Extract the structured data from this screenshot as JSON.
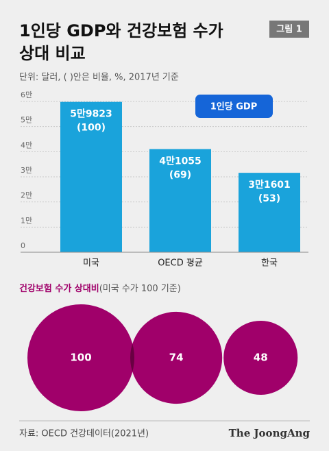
{
  "header": {
    "title_lines": [
      "1인당 GDP와 건강보험 수가",
      "상대 비교"
    ],
    "badge": "그림 1",
    "note": "단위: 달러, ( )안은 비율, %, 2017년 기준"
  },
  "chart_data": [
    {
      "type": "bar",
      "categories": [
        "미국",
        "OECD 평균",
        "한국"
      ],
      "series": [
        {
          "name": "1인당 GDP",
          "color": "#1aa3db",
          "legend_color": "#1565d8",
          "values": [
            59823,
            41055,
            31601
          ],
          "value_labels": [
            "5만9823",
            "4만1055",
            "3만1601"
          ],
          "relative_values": [
            100,
            69,
            53
          ],
          "relative_labels": [
            "(100)",
            "(69)",
            "(53)"
          ]
        }
      ],
      "ylim": [
        0,
        60000
      ],
      "yticks": [
        0,
        {
          "value": 10000,
          "label": "1만"
        },
        {
          "value": 20000,
          "label": "2만"
        },
        {
          "value": 30000,
          "label": "3만"
        },
        {
          "value": 40000,
          "label": "4만"
        },
        {
          "value": 50000,
          "label": "5만"
        },
        {
          "value": 60000,
          "label": "6만"
        }
      ],
      "grid": true
    },
    {
      "type": "bubble",
      "title": "건강보험 수가 상대비",
      "subtitle": "(미국 수가 100 기준)",
      "values": [
        100,
        74,
        48
      ],
      "color": "#a0006a",
      "overlap_color": "#690042"
    }
  ],
  "footer": {
    "source": "자료: OECD 건강데이터(2021년)",
    "brand": "The JoongAng"
  }
}
